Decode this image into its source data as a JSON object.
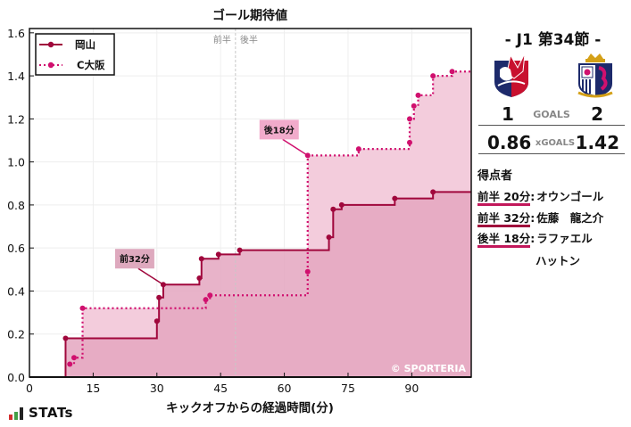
{
  "chart_data": {
    "type": "line",
    "step": true,
    "title": "ゴール期待値",
    "xlabel": "キックオフからの経過時間(分)",
    "ylabel": "",
    "xlim": [
      0,
      104
    ],
    "ylim": [
      0,
      1.62
    ],
    "xticks": [
      0,
      15,
      30,
      45,
      60,
      75,
      90
    ],
    "yticks": [
      0.0,
      0.2,
      0.4,
      0.6,
      0.8,
      1.0,
      1.2,
      1.4,
      1.6
    ],
    "grid": true,
    "legend_position": "upper left",
    "halftime_marker": {
      "x": 48.5,
      "labels": [
        "前半",
        "後半"
      ]
    },
    "series": [
      {
        "name": "岡山",
        "style": "solid",
        "color": "#a0073c",
        "fill": "#e4a6bf",
        "points": [
          [
            0,
            0
          ],
          [
            8.5,
            0.18
          ],
          [
            30,
            0.26
          ],
          [
            30.5,
            0.37
          ],
          [
            31.5,
            0.43
          ],
          [
            40,
            0.46
          ],
          [
            40.5,
            0.55
          ],
          [
            44.5,
            0.57
          ],
          [
            49.5,
            0.59
          ],
          [
            70.5,
            0.65
          ],
          [
            71.5,
            0.78
          ],
          [
            73.5,
            0.8
          ],
          [
            86,
            0.83
          ],
          [
            95,
            0.86
          ],
          [
            104,
            0.86
          ]
        ]
      },
      {
        "name": "C大阪",
        "style": "dotted",
        "color": "#d0106e",
        "fill": "#f3ccdc",
        "points": [
          [
            9.5,
            0.06
          ],
          [
            10.5,
            0.09
          ],
          [
            12.5,
            0.32
          ],
          [
            41.5,
            0.36
          ],
          [
            42.5,
            0.38
          ],
          [
            65.5,
            0.49
          ],
          [
            65.5,
            1.03
          ],
          [
            77.5,
            1.06
          ],
          [
            89.5,
            1.09
          ],
          [
            89.5,
            1.2
          ],
          [
            90.5,
            1.26
          ],
          [
            91.5,
            1.31
          ],
          [
            95,
            1.4
          ],
          [
            99.5,
            1.42
          ],
          [
            104,
            1.42
          ]
        ]
      }
    ],
    "annotations": [
      {
        "text": "前32分",
        "x": 31.5,
        "y": 0.43,
        "series": "岡山"
      },
      {
        "text": "後18分",
        "x": 65.5,
        "y": 1.03,
        "series": "C大阪"
      }
    ],
    "watermark": "© SPORTERIA"
  },
  "match": {
    "round": "- J1 第34節 -",
    "home": {
      "name": "岡山",
      "goals": "1",
      "xg": "0.86"
    },
    "away": {
      "name": "C大阪",
      "goals": "2",
      "xg": "1.42"
    },
    "goals_label": "GOALS",
    "xg_label": "xGOALS"
  },
  "scorers": {
    "title": "得点者",
    "items": [
      {
        "time": "前半 20分",
        "name": "オウンゴール",
        "team": "away"
      },
      {
        "time": "前半 32分",
        "name": "佐藤　龍之介",
        "team": "home"
      },
      {
        "time": "後半 18分",
        "name": "ラファエル",
        "name2": "ハットン",
        "team": "away"
      }
    ]
  },
  "brand": {
    "logo_text": "STATs"
  }
}
